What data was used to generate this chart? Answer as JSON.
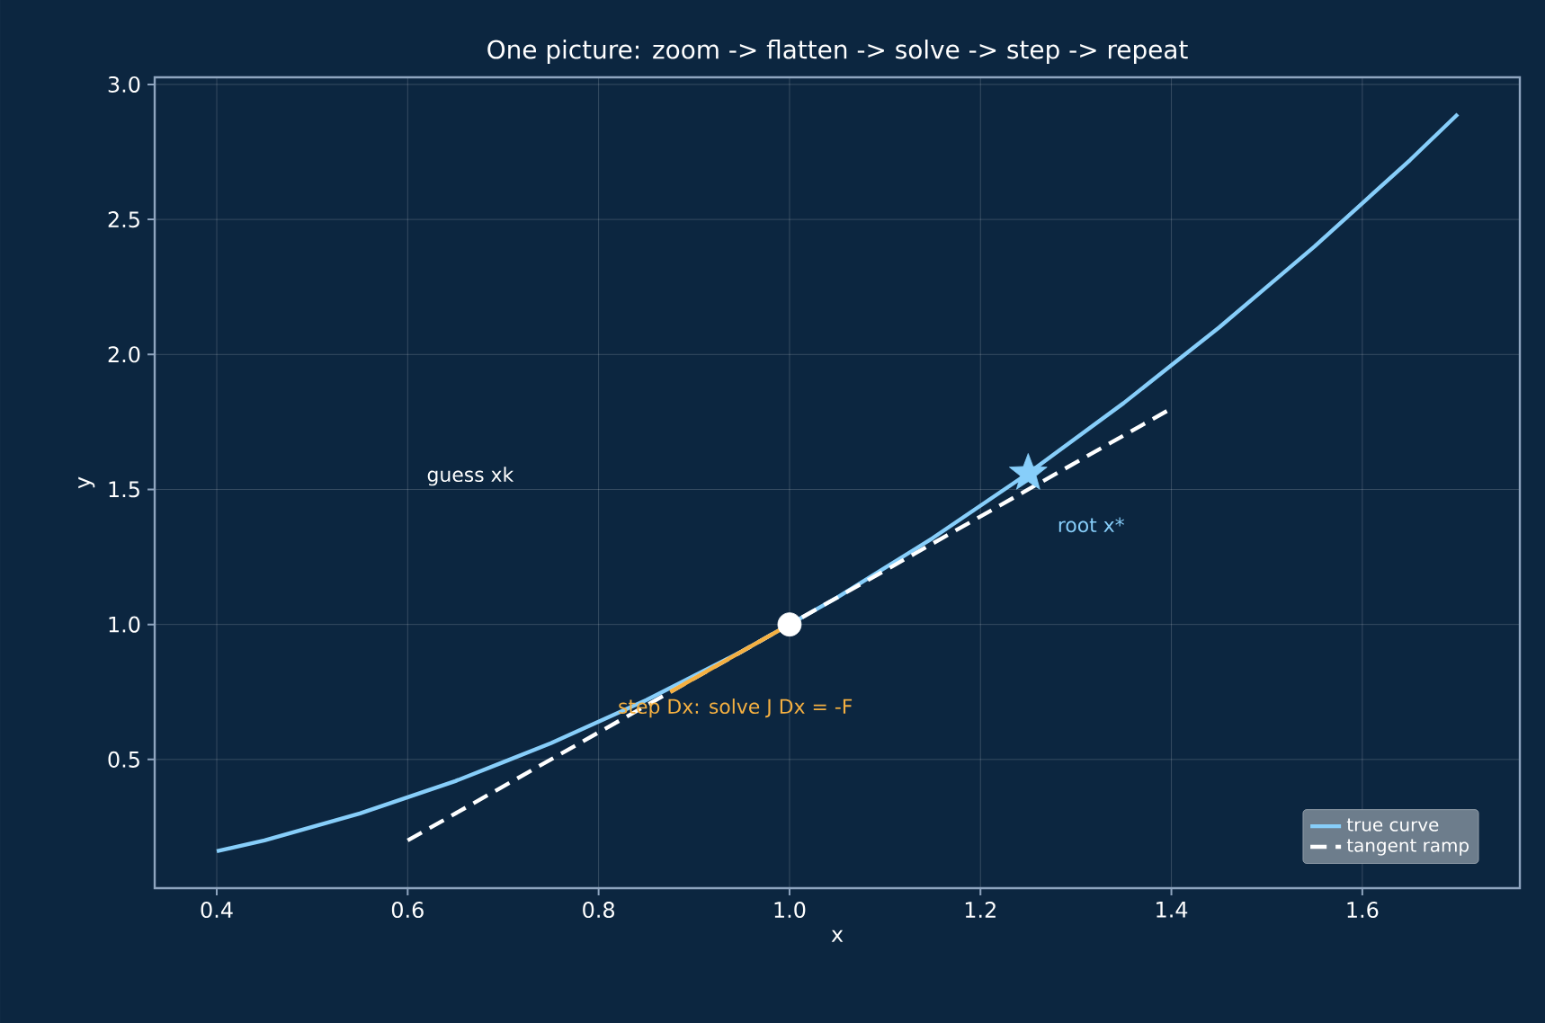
{
  "chart_data": {
    "type": "line",
    "title": "One picture: zoom -> flatten -> solve -> step -> repeat",
    "xlabel": "x",
    "ylabel": "y",
    "xlim": [
      0.335,
      1.765
    ],
    "ylim": [
      0.0235,
      3.0265
    ],
    "xticks": [
      {
        "value": 0.4,
        "label": "0.4"
      },
      {
        "value": 0.6,
        "label": "0.6"
      },
      {
        "value": 0.8,
        "label": "0.8"
      },
      {
        "value": 1.0,
        "label": "1.0"
      },
      {
        "value": 1.2,
        "label": "1.2"
      },
      {
        "value": 1.4,
        "label": "1.4"
      },
      {
        "value": 1.6,
        "label": "1.6"
      }
    ],
    "yticks": [
      {
        "value": 0.5,
        "label": "0.5"
      },
      {
        "value": 1.0,
        "label": "1.0"
      },
      {
        "value": 1.5,
        "label": "1.5"
      },
      {
        "value": 2.0,
        "label": "2.0"
      },
      {
        "value": 2.5,
        "label": "2.5"
      },
      {
        "value": 3.0,
        "label": "3.0"
      }
    ],
    "grid": true,
    "legend": "bottom right",
    "series": [
      {
        "name": "true curve",
        "color": "#87cefa",
        "x": [
          0.4,
          0.45,
          0.5,
          0.55,
          0.6,
          0.65,
          0.7,
          0.75,
          0.8,
          0.85,
          0.9,
          0.95,
          1.0,
          1.05,
          1.1,
          1.15,
          1.2,
          1.25,
          1.3,
          1.35,
          1.4,
          1.45,
          1.5,
          1.55,
          1.6,
          1.65,
          1.7
        ],
        "values": [
          0.16,
          0.2,
          0.25,
          0.3,
          0.36,
          0.42,
          0.49,
          0.56,
          0.64,
          0.72,
          0.81,
          0.9,
          1.0,
          1.1,
          1.21,
          1.32,
          1.44,
          1.56,
          1.69,
          1.82,
          1.96,
          2.1,
          2.25,
          2.4,
          2.56,
          2.72,
          2.89
        ]
      },
      {
        "name": "tangent ramp",
        "line_style": "dashed",
        "color": "#ffffff",
        "x": [
          0.6,
          1.4
        ],
        "values": [
          0.2,
          1.8
        ]
      },
      {
        "color": "#f5b041",
        "x": [
          1.0,
          0.875
        ],
        "values": [
          1.0,
          0.75
        ]
      },
      {
        "type": "scatter",
        "marker": "circle",
        "color": "#ffffff",
        "x": [
          1.0
        ],
        "values": [
          1.0
        ]
      },
      {
        "type": "scatter",
        "marker": "star",
        "color": "#87cefa",
        "x": [
          1.25
        ],
        "values": [
          1.56
        ]
      }
    ],
    "annotations": [
      "guess xk",
      "root x*",
      "step Dx: solve J Dx = -F"
    ]
  }
}
